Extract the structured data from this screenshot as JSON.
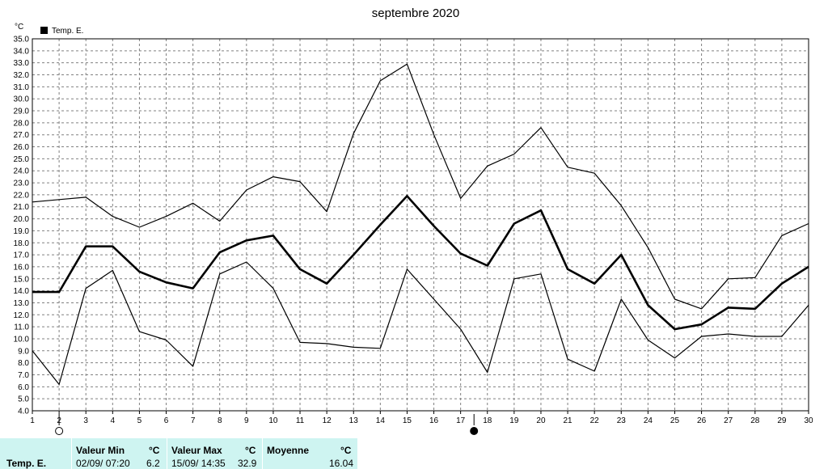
{
  "chart_data": {
    "type": "line",
    "title": "septembre 2020",
    "unit": "°C",
    "legend": "Temp. E.",
    "legend_position": "top-left",
    "grid": true,
    "ylim": [
      4.0,
      35.0
    ],
    "ytick_step": 1.0,
    "x": [
      1,
      2,
      3,
      4,
      5,
      6,
      7,
      8,
      9,
      10,
      11,
      12,
      13,
      14,
      15,
      16,
      17,
      18,
      19,
      20,
      21,
      22,
      23,
      24,
      25,
      26,
      27,
      28,
      29,
      30
    ],
    "series": [
      {
        "role": "max",
        "width": 1.2,
        "values": [
          21.4,
          21.6,
          21.8,
          20.2,
          19.3,
          20.2,
          21.3,
          19.8,
          22.4,
          23.5,
          23.1,
          20.6,
          27.1,
          31.5,
          32.9,
          27.0,
          21.7,
          24.4,
          25.4,
          27.6,
          24.3,
          23.8,
          21.1,
          17.6,
          13.3,
          12.5,
          15.0,
          15.1,
          18.6,
          19.6
        ]
      },
      {
        "role": "avg",
        "width": 2.6,
        "values": [
          13.9,
          13.9,
          17.7,
          17.7,
          15.6,
          14.7,
          14.2,
          17.2,
          18.2,
          18.6,
          15.8,
          14.6,
          17.0,
          19.5,
          21.9,
          19.4,
          17.1,
          16.1,
          19.6,
          20.7,
          15.8,
          14.6,
          17.0,
          12.8,
          10.8,
          11.2,
          12.6,
          12.5,
          14.6,
          16.0
        ]
      },
      {
        "role": "min",
        "width": 1.2,
        "values": [
          9.0,
          6.2,
          14.2,
          15.7,
          10.6,
          9.9,
          7.7,
          15.4,
          16.4,
          14.2,
          9.7,
          9.6,
          9.3,
          9.2,
          15.8,
          13.3,
          10.8,
          7.2,
          15.0,
          15.4,
          8.3,
          7.3,
          13.3,
          9.9,
          8.4,
          10.2,
          10.4,
          10.2,
          10.2,
          12.8
        ]
      }
    ],
    "markers": [
      {
        "x": 2,
        "kind": "open-circle"
      },
      {
        "x": 17.5,
        "kind": "filled-circle"
      }
    ],
    "colors": {
      "line": "#000000",
      "grid": "#808080",
      "background": "#ffffff",
      "footer": "#cef4f1"
    }
  },
  "footer": {
    "row_label": "Temp. E.",
    "min": {
      "header": "Valeur Min",
      "unit": "°C",
      "datetime": "02/09/  07:20",
      "value": "6.2"
    },
    "max": {
      "header": "Valeur Max",
      "unit": "°C",
      "datetime": "15/09/  14:35",
      "value": "32.9"
    },
    "avg": {
      "header": "Moyenne",
      "unit": "°C",
      "value": "16.04"
    }
  }
}
